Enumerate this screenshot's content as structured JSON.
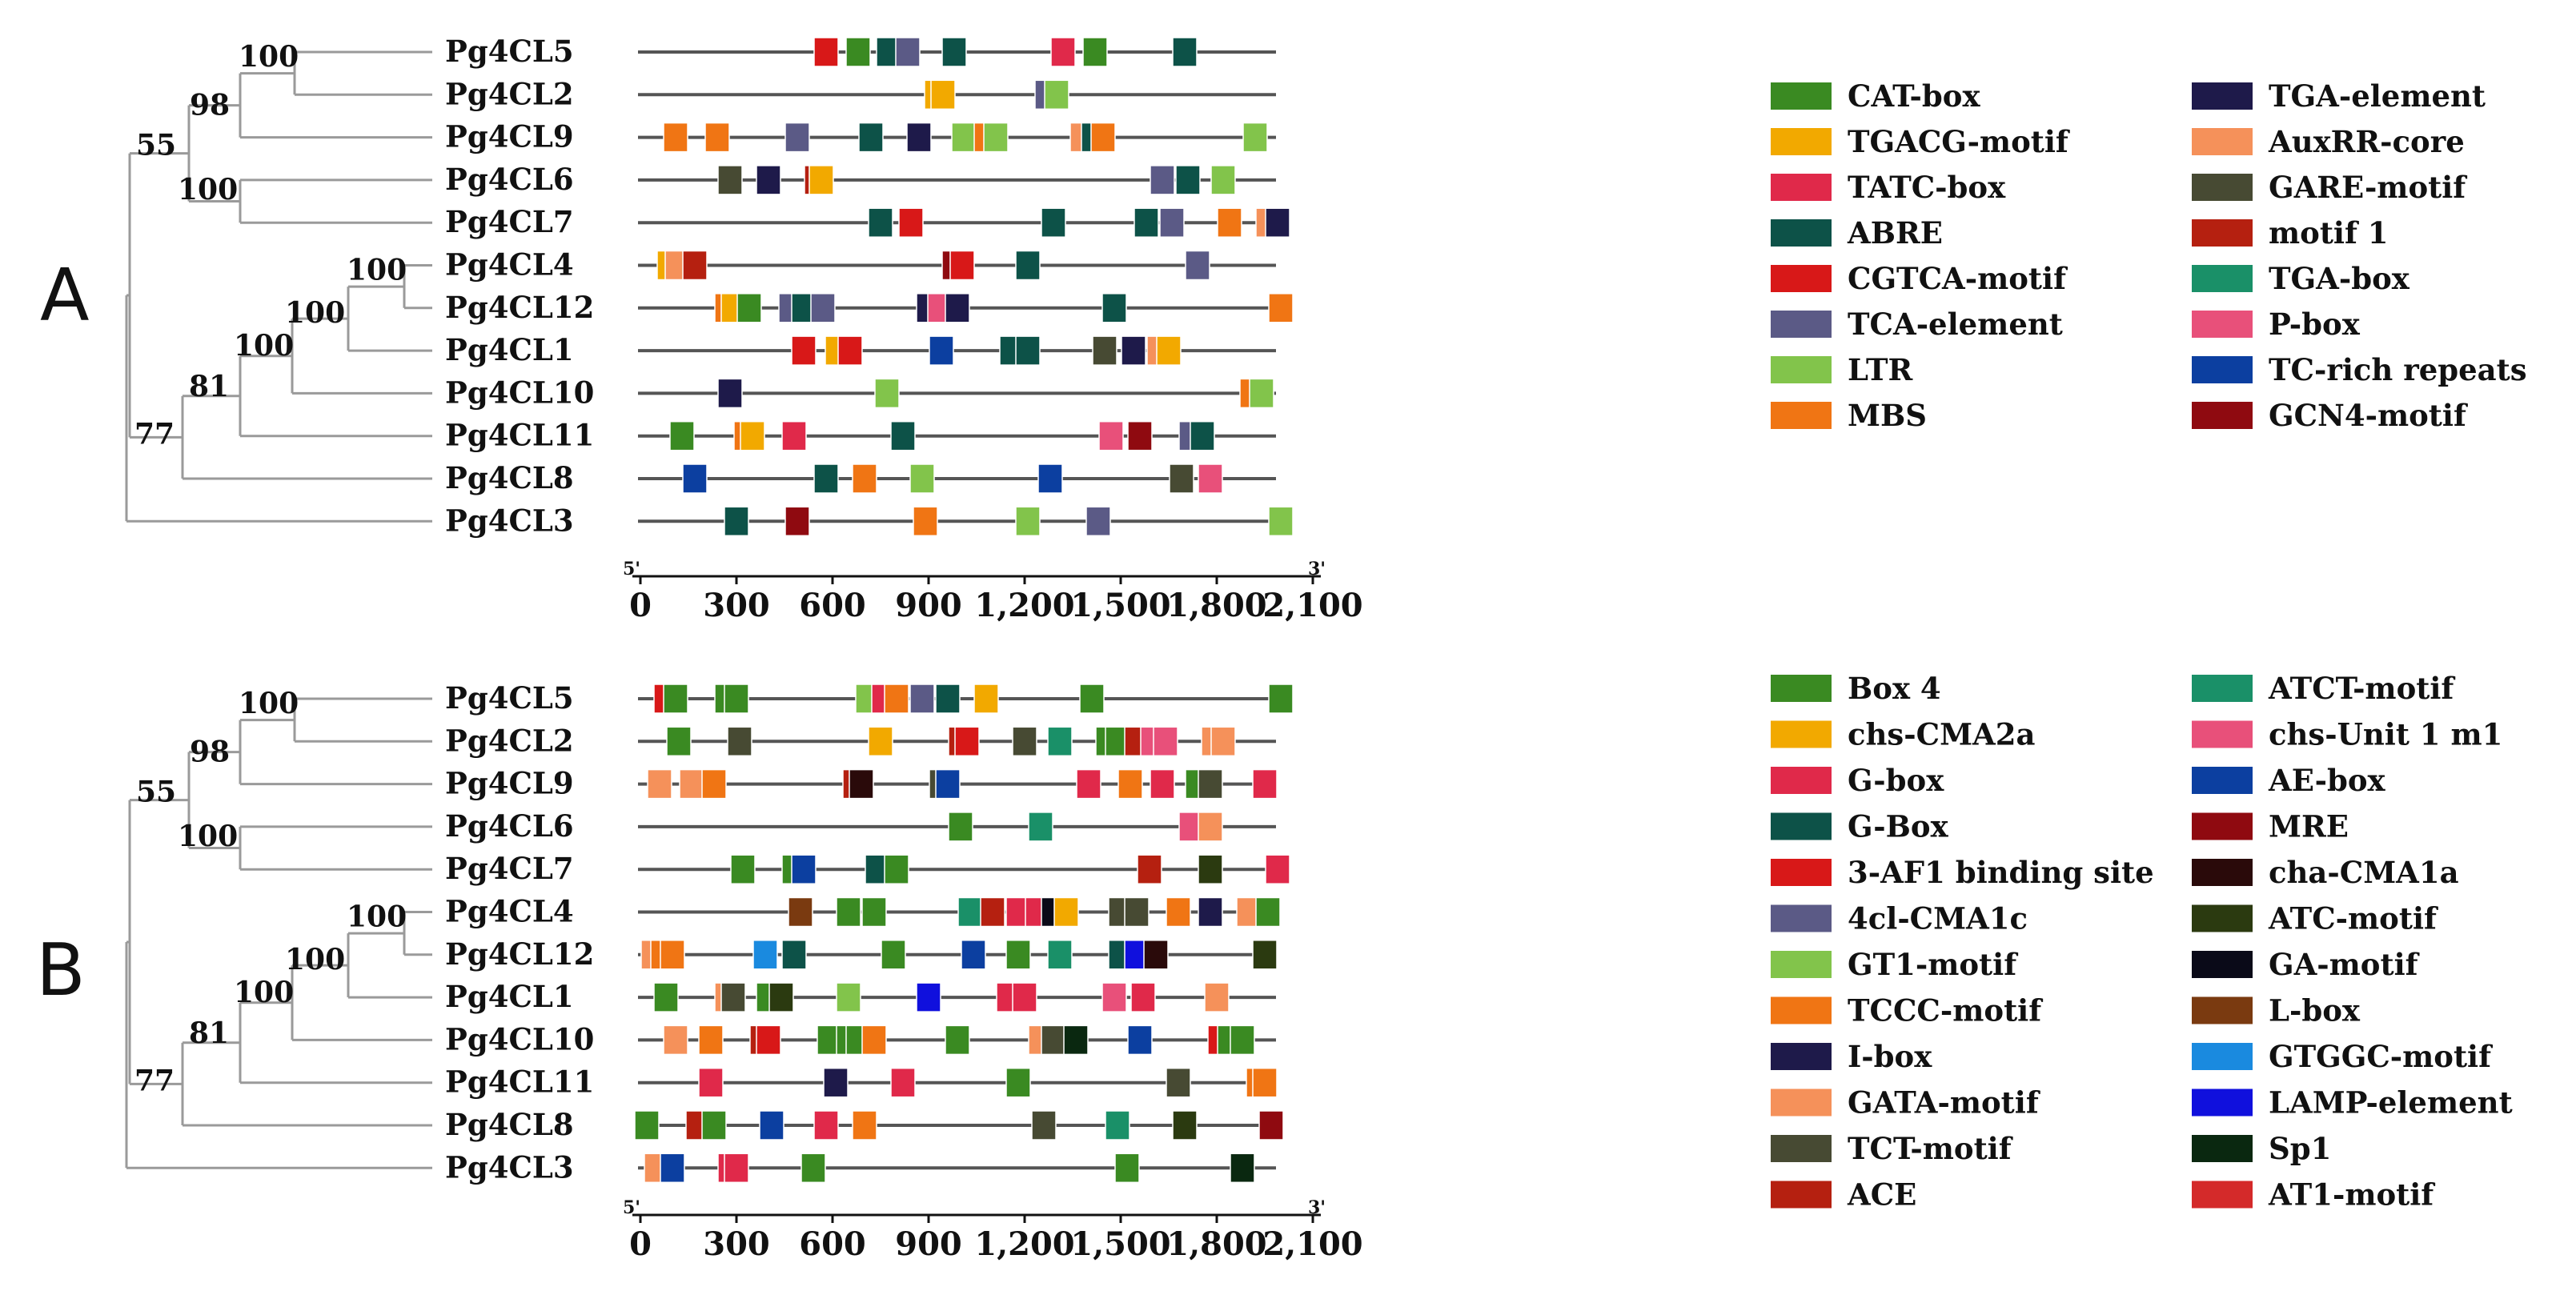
{
  "panels": [
    {
      "label": "A",
      "genes": [
        "Pg4CL5",
        "Pg4CL2",
        "Pg4CL9",
        "Pg4CL6",
        "Pg4CL7",
        "Pg4CL4",
        "Pg4CL12",
        "Pg4CL1",
        "Pg4CL10",
        "Pg4CL11",
        "Pg4CL8",
        "Pg4CL3"
      ],
      "bootstrap": [
        "100",
        "98",
        "55",
        "100",
        "100",
        "100",
        "100",
        "81",
        "77"
      ],
      "axis": {
        "ticks": [
          "0",
          "300",
          "600",
          "900",
          "1,200",
          "1,500",
          "1,800",
          "2,100"
        ],
        "start_label": "5'",
        "end_label": "3'"
      },
      "legend": [
        {
          "name": "CAT-box",
          "color": "#3a8a22"
        },
        {
          "name": "TGACG-motif",
          "color": "#f2a900"
        },
        {
          "name": "TATC-box",
          "color": "#e0294a"
        },
        {
          "name": "ABRE",
          "color": "#0d5248"
        },
        {
          "name": "CGTCA-motif",
          "color": "#d81818"
        },
        {
          "name": "TCA-element",
          "color": "#5b5a86"
        },
        {
          "name": "LTR",
          "color": "#82c44b"
        },
        {
          "name": "MBS",
          "color": "#f07514"
        },
        {
          "name": "TGA-element",
          "color": "#1e1a4a"
        },
        {
          "name": "AuxRR-core",
          "color": "#f5915a"
        },
        {
          "name": "GARE-motif",
          "color": "#474a33"
        },
        {
          "name": "motif 1",
          "color": "#b52010"
        },
        {
          "name": "TGA-box",
          "color": "#1a9068"
        },
        {
          "name": "P-box",
          "color": "#e8507a"
        },
        {
          "name": "TC-rich repeats",
          "color": "#0c3fa0"
        },
        {
          "name": "GCN4-motif",
          "color": "#8f0a10"
        }
      ]
    },
    {
      "label": "B",
      "genes": [
        "Pg4CL5",
        "Pg4CL2",
        "Pg4CL9",
        "Pg4CL6",
        "Pg4CL7",
        "Pg4CL4",
        "Pg4CL12",
        "Pg4CL1",
        "Pg4CL10",
        "Pg4CL11",
        "Pg4CL8",
        "Pg4CL3"
      ],
      "bootstrap": [
        "100",
        "98",
        "55",
        "100",
        "100",
        "100",
        "100",
        "81",
        "77"
      ],
      "axis": {
        "ticks": [
          "0",
          "300",
          "600",
          "900",
          "1,200",
          "1,500",
          "1,800",
          "2,100"
        ],
        "start_label": "5'",
        "end_label": "3'"
      },
      "legend": [
        {
          "name": "Box 4",
          "color": "#3a8a22"
        },
        {
          "name": "chs-CMA2a",
          "color": "#f2a900"
        },
        {
          "name": "G-box",
          "color": "#e0294a"
        },
        {
          "name": "G-Box",
          "color": "#0d5248"
        },
        {
          "name": "3-AF1 binding site",
          "color": "#d81818"
        },
        {
          "name": "4cl-CMA1c",
          "color": "#5b5a86"
        },
        {
          "name": "GT1-motif",
          "color": "#82c44b"
        },
        {
          "name": "TCCC-motif",
          "color": "#f07514"
        },
        {
          "name": "I-box",
          "color": "#1e1a4a"
        },
        {
          "name": "GATA-motif",
          "color": "#f5915a"
        },
        {
          "name": "TCT-motif",
          "color": "#474a33"
        },
        {
          "name": "ACE",
          "color": "#b52010"
        },
        {
          "name": "ATCT-motif",
          "color": "#1a9068"
        },
        {
          "name": "chs-Unit 1 m1",
          "color": "#e8507a"
        },
        {
          "name": "AE-box",
          "color": "#0c3fa0"
        },
        {
          "name": "MRE",
          "color": "#8f0a10"
        },
        {
          "name": "cha-CMA1a",
          "color": "#2a0a0a"
        },
        {
          "name": "ATC-motif",
          "color": "#2b3a10"
        },
        {
          "name": "GA-motif",
          "color": "#0a0a18"
        },
        {
          "name": "L-box",
          "color": "#7a3a10"
        },
        {
          "name": "GTGGC-motif",
          "color": "#1a8adf"
        },
        {
          "name": "LAMP-element",
          "color": "#1010dd"
        },
        {
          "name": "Sp1",
          "color": "#0a2810"
        },
        {
          "name": "AT1-motif",
          "color": "#d42a2a"
        }
      ]
    }
  ],
  "motif_sites": {
    "A": [
      [
        [
          580,
          4
        ],
        [
          680,
          0
        ],
        [
          775,
          3
        ],
        [
          835,
          5
        ],
        [
          980,
          3
        ],
        [
          1320,
          2
        ],
        [
          1420,
          0
        ],
        [
          1700,
          3
        ]
      ],
      [
        [
          925,
          1
        ],
        [
          945,
          1
        ],
        [
          1270,
          5
        ],
        [
          1300,
          6
        ]
      ],
      [
        [
          110,
          7
        ],
        [
          240,
          7
        ],
        [
          490,
          5
        ],
        [
          720,
          3
        ],
        [
          870,
          8
        ],
        [
          1010,
          6
        ],
        [
          1080,
          7
        ],
        [
          1110,
          6
        ],
        [
          1380,
          9
        ],
        [
          1415,
          3
        ],
        [
          1445,
          7
        ],
        [
          1920,
          6
        ]
      ],
      [
        [
          280,
          10
        ],
        [
          400,
          8
        ],
        [
          550,
          11
        ],
        [
          565,
          1
        ],
        [
          1630,
          5
        ],
        [
          1710,
          3
        ],
        [
          1820,
          6
        ]
      ],
      [
        [
          750,
          3
        ],
        [
          845,
          4
        ],
        [
          1290,
          3
        ],
        [
          1580,
          3
        ],
        [
          1660,
          5
        ],
        [
          1840,
          7
        ],
        [
          1960,
          9
        ],
        [
          1990,
          8
        ]
      ],
      [
        [
          90,
          1
        ],
        [
          115,
          9
        ],
        [
          170,
          11
        ],
        [
          980,
          15
        ],
        [
          1005,
          4
        ],
        [
          1210,
          3
        ],
        [
          1740,
          5
        ]
      ],
      [
        [
          270,
          7
        ],
        [
          290,
          1
        ],
        [
          340,
          0
        ],
        [
          470,
          5
        ],
        [
          510,
          3
        ],
        [
          570,
          5
        ],
        [
          900,
          8
        ],
        [
          935,
          13
        ],
        [
          990,
          8
        ],
        [
          1480,
          3
        ],
        [
          2000,
          7
        ]
      ],
      [
        [
          510,
          4
        ],
        [
          615,
          1
        ],
        [
          655,
          4
        ],
        [
          940,
          14
        ],
        [
          1160,
          3
        ],
        [
          1210,
          3
        ],
        [
          1450,
          10
        ],
        [
          1540,
          8
        ],
        [
          1620,
          9
        ],
        [
          1650,
          1
        ]
      ],
      [
        [
          280,
          8
        ],
        [
          770,
          6
        ],
        [
          1910,
          7
        ],
        [
          1940,
          6
        ]
      ],
      [
        [
          130,
          0
        ],
        [
          330,
          7
        ],
        [
          350,
          1
        ],
        [
          480,
          2
        ],
        [
          820,
          3
        ],
        [
          1470,
          13
        ],
        [
          1560,
          15
        ],
        [
          1720,
          5
        ],
        [
          1755,
          3
        ]
      ],
      [
        [
          170,
          14
        ],
        [
          580,
          3
        ],
        [
          700,
          7
        ],
        [
          880,
          6
        ],
        [
          1280,
          14
        ],
        [
          1690,
          10
        ],
        [
          1780,
          13
        ]
      ],
      [
        [
          300,
          3
        ],
        [
          490,
          15
        ],
        [
          890,
          7
        ],
        [
          1210,
          6
        ],
        [
          1430,
          5
        ],
        [
          2000,
          6
        ]
      ]
    ],
    "B": [
      [
        [
          80,
          4
        ],
        [
          110,
          0
        ],
        [
          270,
          0
        ],
        [
          300,
          0
        ],
        [
          710,
          6
        ],
        [
          760,
          2
        ],
        [
          800,
          7
        ],
        [
          880,
          5
        ],
        [
          960,
          3
        ],
        [
          1080,
          1
        ],
        [
          1410,
          0
        ],
        [
          2000,
          0
        ]
      ],
      [
        [
          120,
          0
        ],
        [
          310,
          10
        ],
        [
          750,
          1
        ],
        [
          1000,
          11
        ],
        [
          1020,
          4
        ],
        [
          1200,
          10
        ],
        [
          1310,
          12
        ],
        [
          1460,
          0
        ],
        [
          1490,
          0
        ],
        [
          1550,
          11
        ],
        [
          1600,
          13
        ],
        [
          1640,
          13
        ],
        [
          1790,
          9
        ],
        [
          1820,
          9
        ]
      ],
      [
        [
          60,
          9
        ],
        [
          160,
          9
        ],
        [
          230,
          7
        ],
        [
          670,
          11
        ],
        [
          690,
          16
        ],
        [
          940,
          10
        ],
        [
          960,
          14
        ],
        [
          1400,
          2
        ],
        [
          1530,
          7
        ],
        [
          1630,
          2
        ],
        [
          1740,
          0
        ],
        [
          1780,
          10
        ],
        [
          1950,
          2
        ]
      ],
      [
        [
          1000,
          0
        ],
        [
          1250,
          12
        ],
        [
          1720,
          13
        ],
        [
          1780,
          9
        ]
      ],
      [
        [
          320,
          0
        ],
        [
          480,
          0
        ],
        [
          510,
          14
        ],
        [
          740,
          3
        ],
        [
          800,
          0
        ],
        [
          1590,
          11
        ],
        [
          1780,
          17
        ],
        [
          1990,
          2
        ]
      ],
      [
        [
          500,
          19
        ],
        [
          650,
          0
        ],
        [
          730,
          0
        ],
        [
          1030,
          12
        ],
        [
          1100,
          11
        ],
        [
          1180,
          2
        ],
        [
          1240,
          2
        ],
        [
          1290,
          18
        ],
        [
          1330,
          1
        ],
        [
          1500,
          10
        ],
        [
          1550,
          10
        ],
        [
          1680,
          7
        ],
        [
          1780,
          8
        ],
        [
          1900,
          9
        ],
        [
          1960,
          0
        ]
      ],
      [
        [
          40,
          9
        ],
        [
          70,
          7
        ],
        [
          100,
          7
        ],
        [
          390,
          20
        ],
        [
          480,
          3
        ],
        [
          790,
          0
        ],
        [
          1040,
          14
        ],
        [
          1180,
          0
        ],
        [
          1310,
          12
        ],
        [
          1500,
          3
        ],
        [
          1550,
          21
        ],
        [
          1610,
          16
        ],
        [
          1950,
          17
        ]
      ],
      [
        [
          80,
          0
        ],
        [
          270,
          9
        ],
        [
          290,
          10
        ],
        [
          400,
          0
        ],
        [
          440,
          17
        ],
        [
          650,
          6
        ],
        [
          900,
          21
        ],
        [
          1150,
          2
        ],
        [
          1200,
          2
        ],
        [
          1480,
          13
        ],
        [
          1570,
          2
        ],
        [
          1800,
          9
        ]
      ],
      [
        [
          110,
          9
        ],
        [
          220,
          7
        ],
        [
          380,
          11
        ],
        [
          400,
          4
        ],
        [
          590,
          0
        ],
        [
          650,
          0
        ],
        [
          680,
          0
        ],
        [
          730,
          7
        ],
        [
          990,
          0
        ],
        [
          1250,
          9
        ],
        [
          1290,
          10
        ],
        [
          1360,
          22
        ],
        [
          1560,
          14
        ],
        [
          1810,
          4
        ],
        [
          1840,
          0
        ],
        [
          1880,
          0
        ]
      ],
      [
        [
          220,
          2
        ],
        [
          610,
          8
        ],
        [
          820,
          2
        ],
        [
          1180,
          0
        ],
        [
          1680,
          10
        ],
        [
          1930,
          7
        ],
        [
          1950,
          7
        ]
      ],
      [
        [
          20,
          0
        ],
        [
          180,
          11
        ],
        [
          230,
          0
        ],
        [
          410,
          14
        ],
        [
          580,
          2
        ],
        [
          700,
          7
        ],
        [
          1260,
          10
        ],
        [
          1490,
          12
        ],
        [
          1700,
          17
        ],
        [
          1970,
          15
        ]
      ],
      [
        [
          50,
          9
        ],
        [
          100,
          14
        ],
        [
          280,
          2
        ],
        [
          300,
          2
        ],
        [
          540,
          0
        ],
        [
          1520,
          0
        ],
        [
          1880,
          22
        ]
      ]
    ]
  }
}
